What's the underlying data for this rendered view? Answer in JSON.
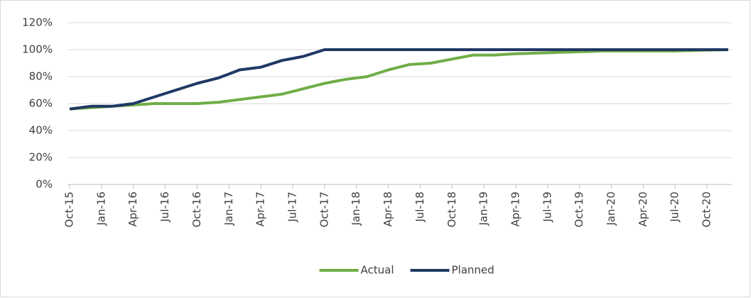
{
  "chart_data": {
    "type": "line",
    "categories": [
      "Oct-15",
      null,
      null,
      "Jan-16",
      null,
      null,
      "Apr-16",
      null,
      null,
      "Jul-16",
      null,
      null,
      "Oct-16",
      null,
      null,
      "Jan-17",
      null,
      null,
      "Apr-17",
      null,
      null,
      "Jul-17",
      null,
      null,
      "Oct-17",
      null,
      null,
      "Jan-18",
      null,
      null,
      "Apr-18",
      null,
      null,
      "Jul-18",
      null,
      null,
      "Oct-18",
      null,
      null,
      "Jan-19",
      null,
      null,
      "Apr-19",
      null,
      null,
      "Jul-19",
      null,
      null,
      "Oct-19",
      null,
      null,
      "Jan-20",
      null,
      null,
      "Apr-20",
      null,
      null,
      "Jul-20",
      null,
      null,
      "Oct-20",
      null,
      null
    ],
    "series": [
      {
        "name": "Actual",
        "color": "#70ad47",
        "values": [
          56,
          56.5,
          57,
          57.5,
          58,
          58.5,
          59,
          59.5,
          60,
          60,
          60,
          60,
          60,
          60.5,
          61,
          62,
          63,
          64,
          65,
          66,
          67,
          69,
          71,
          73,
          75,
          76.5,
          78,
          79,
          80,
          82.5,
          85,
          87,
          89,
          89.5,
          90,
          91.5,
          93,
          94.5,
          96,
          96,
          96,
          96.5,
          97,
          97.2,
          97.5,
          97.7,
          98,
          98.2,
          98.5,
          98.7,
          99,
          99,
          99,
          99,
          99,
          99,
          99,
          99,
          99.3,
          99.5,
          99.7,
          99.8,
          100
        ]
      },
      {
        "name": "Planned",
        "color": "#203864",
        "values": [
          56,
          57,
          58,
          58,
          58,
          59,
          60,
          62.5,
          65,
          67.5,
          70,
          72.5,
          75,
          77,
          79,
          82,
          85,
          86,
          87,
          89.5,
          92,
          93.5,
          95,
          97.5,
          100,
          100,
          100,
          100,
          100,
          100,
          100,
          100,
          100,
          100,
          100,
          100,
          100,
          100,
          100,
          100,
          100,
          100,
          100,
          100,
          100,
          100,
          100,
          100,
          100,
          100,
          100,
          100,
          100,
          100,
          100,
          100,
          100,
          100,
          100,
          100,
          100,
          100,
          100
        ]
      }
    ],
    "ylim": [
      0,
      120
    ],
    "yticks": [
      {
        "value": 0,
        "label": "0%"
      },
      {
        "value": 20,
        "label": "20%"
      },
      {
        "value": 40,
        "label": "40%"
      },
      {
        "value": 60,
        "label": "60%"
      },
      {
        "value": 80,
        "label": "80%"
      },
      {
        "value": 100,
        "label": "100%"
      },
      {
        "value": 120,
        "label": "120%"
      }
    ],
    "grid": true,
    "legend": "bottom"
  }
}
